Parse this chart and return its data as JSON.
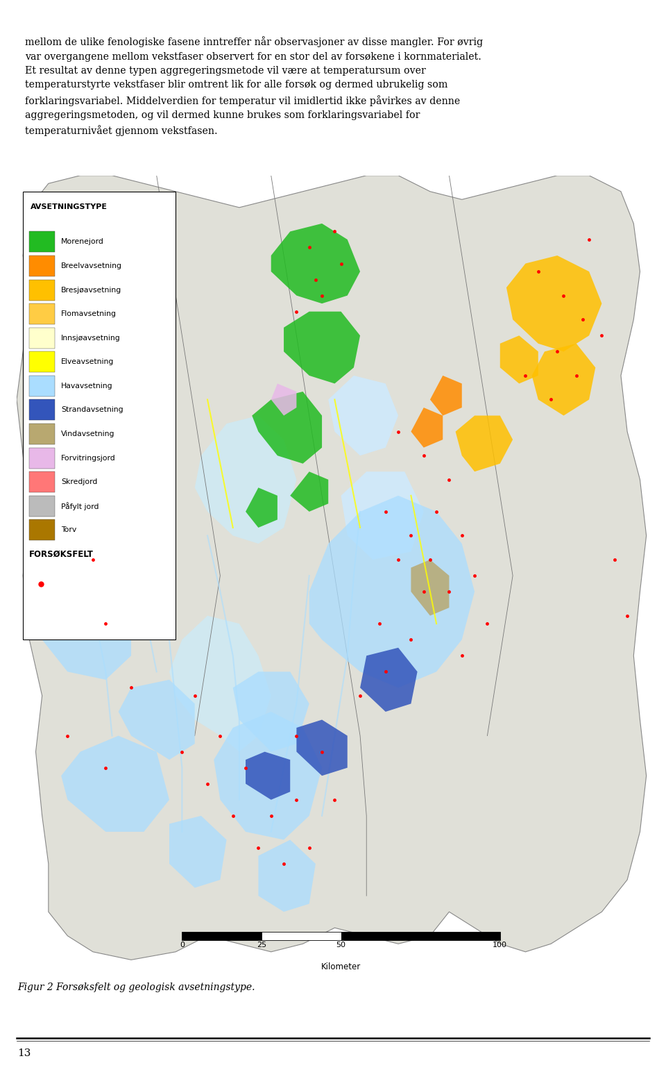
{
  "bg_color": "#ffffff",
  "page_width": 9.6,
  "page_height": 15.41,
  "legend_items": [
    {
      "label": "Morenejord",
      "color": "#22bb22"
    },
    {
      "label": "Breelvavsetning",
      "color": "#ff8c00"
    },
    {
      "label": "Bresjøavsetning",
      "color": "#ffc000"
    },
    {
      "label": "Flomavsetning",
      "color": "#ffcc44"
    },
    {
      "label": "Innsjøavsetning",
      "color": "#ffffcc"
    },
    {
      "label": "Elveavsetning",
      "color": "#ffff00"
    },
    {
      "label": "Havavsetning",
      "color": "#aaddff"
    },
    {
      "label": "Strandavsetning",
      "color": "#3355bb"
    },
    {
      "label": "Vindavsetning",
      "color": "#b8a870"
    },
    {
      "label": "Forvitringsjord",
      "color": "#e8b8e8"
    },
    {
      "label": "Skredjord",
      "color": "#ff7777"
    },
    {
      "label": "Påfylt jord",
      "color": "#bbbbbb"
    },
    {
      "label": "Torv",
      "color": "#aa7700"
    }
  ],
  "legend_title": "AVSETNINGSTYPE",
  "forsoksfelt_label": "FORSØKSFELT",
  "forsoksfelt_color": "#ff0000",
  "caption": "Figur 2 Forsøksfelt og geologisk avsetningstype.",
  "page_number": "13",
  "scale_bar_label": "Kilometer",
  "map_bg": "#e8eae0",
  "sea_color": "#ccdde8",
  "land_base": "#e0e0d8",
  "text_top": "mellom de ulike fenologiske fasene inntreffer når observasjoner av disse mangler. For øvrig\nvar overgangene mellom vekstfaser observert for en stor del av forsøkene i kornmaterialet.\nEt resultat av denne typen aggregeringsmetode vil være at temperatursum over\ntemperaturstyrte vekstfaser blir omtrent lik for alle forsøk og dermed ubrukelig som\nforklaringsvariabel. Middelverdien for temperatur vil imidlertid ikke påvirkes av denne\naggregerings metoden, og vil dermed kunne brukes som forklaringsvariabel for\ntemperaturnivået gjennom vekstfasen."
}
